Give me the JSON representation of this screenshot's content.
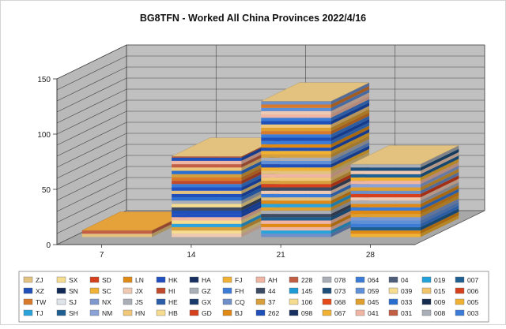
{
  "chart_data": {
    "type": "bar",
    "title": "BG8TFN - Worked All China Provinces 2022/4/16",
    "xlabel": "",
    "ylabel": "",
    "categories": [
      "7",
      "14",
      "21",
      "28"
    ],
    "ylim": [
      0,
      150
    ],
    "yticks": [
      0,
      50,
      100,
      150
    ],
    "totals": [
      6,
      73,
      123,
      66
    ],
    "stacked": true,
    "style": "3d-stacked-bar",
    "grid": true,
    "legend_position": "bottom",
    "wall_color": "#c0c0c0",
    "floor_color": "#a8a8a8",
    "legend": [
      {
        "name": "ZJ",
        "color": "#e3c27f"
      },
      {
        "name": "SX",
        "color": "#f6dc8f"
      },
      {
        "name": "SD",
        "color": "#d7401c"
      },
      {
        "name": "LN",
        "color": "#e08a15"
      },
      {
        "name": "HK",
        "color": "#1f4fc0"
      },
      {
        "name": "HA",
        "color": "#173060"
      },
      {
        "name": "FJ",
        "color": "#f1b233"
      },
      {
        "name": "AH",
        "color": "#f0b6a3"
      },
      {
        "name": "228",
        "color": "#c35e44"
      },
      {
        "name": "078",
        "color": "#a9aeb7"
      },
      {
        "name": "064",
        "color": "#3b7cd8"
      },
      {
        "name": "04",
        "color": "#4e5d7a"
      },
      {
        "name": "019",
        "color": "#21a2dc"
      },
      {
        "name": "007",
        "color": "#1e5f92"
      },
      {
        "name": "XZ",
        "color": "#1f4fb9"
      },
      {
        "name": "SN",
        "color": "#102a55"
      },
      {
        "name": "SC",
        "color": "#f1b233"
      },
      {
        "name": "JX",
        "color": "#f0c9b3"
      },
      {
        "name": "HI",
        "color": "#c14a2c"
      },
      {
        "name": "GZ",
        "color": "#a9aeb7"
      },
      {
        "name": "FH",
        "color": "#3b7cd8"
      },
      {
        "name": "44",
        "color": "#3d4a63"
      },
      {
        "name": "145",
        "color": "#1b9ad6"
      },
      {
        "name": "073",
        "color": "#1d4f7c"
      },
      {
        "name": "059",
        "color": "#5f8fd6"
      },
      {
        "name": "039",
        "color": "#f6dc8f"
      },
      {
        "name": "015",
        "color": "#f2c56b"
      },
      {
        "name": "006",
        "color": "#d7401c"
      },
      {
        "name": "TW",
        "color": "#d87a2a"
      },
      {
        "name": "SJ",
        "color": "#dfe3ea"
      },
      {
        "name": "NX",
        "color": "#7f99cf"
      },
      {
        "name": "JS",
        "color": "#a9aeb7"
      },
      {
        "name": "HE",
        "color": "#2a5ca8"
      },
      {
        "name": "GX",
        "color": "#173a6b"
      },
      {
        "name": "CQ",
        "color": "#6f8fc8"
      },
      {
        "name": "37",
        "color": "#d8a03c"
      },
      {
        "name": "106",
        "color": "#f6dc8f"
      },
      {
        "name": "068",
        "color": "#e64a19"
      },
      {
        "name": "045",
        "color": "#e0a030"
      },
      {
        "name": "033",
        "color": "#2a6fd0"
      },
      {
        "name": "009",
        "color": "#162c4f"
      },
      {
        "name": "005",
        "color": "#f1b233"
      },
      {
        "name": "TJ",
        "color": "#2aa3dc"
      },
      {
        "name": "SH",
        "color": "#1e5f92"
      },
      {
        "name": "NM",
        "color": "#8aa2d6"
      },
      {
        "name": "HN",
        "color": "#f1c77a"
      },
      {
        "name": "HB",
        "color": "#f6dc8f"
      },
      {
        "name": "GD",
        "color": "#d7401c"
      },
      {
        "name": "BJ",
        "color": "#e08a15"
      },
      {
        "name": "262",
        "color": "#1f4fb9"
      },
      {
        "name": "098",
        "color": "#173060"
      },
      {
        "name": "067",
        "color": "#f1b233"
      },
      {
        "name": "041",
        "color": "#f0b6a3"
      },
      {
        "name": "031",
        "color": "#c35e44"
      },
      {
        "name": "008",
        "color": "#a9aeb7"
      },
      {
        "name": "003",
        "color": "#3b7cd8"
      }
    ]
  }
}
